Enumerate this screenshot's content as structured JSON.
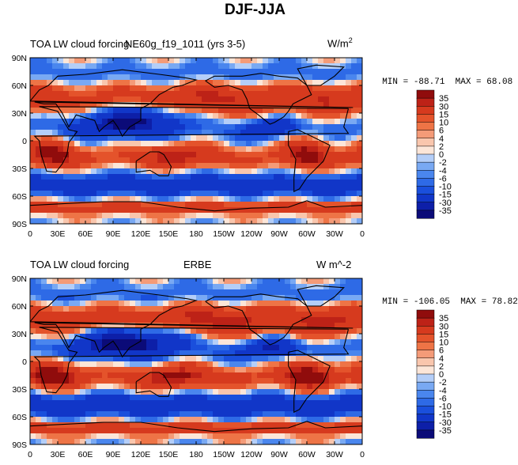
{
  "page": {
    "title": "DJF-JJA"
  },
  "colors": {
    "palette": [
      "#0b0b78",
      "#0d1fa8",
      "#1136c8",
      "#1a4fdc",
      "#2e6ae6",
      "#4a86ee",
      "#79a9f3",
      "#b4cef8",
      "#eef4fd",
      "#fce6d8",
      "#f9c6ad",
      "#f49b78",
      "#ee7446",
      "#e4532b",
      "#d63a1e",
      "#bd2217",
      "#900c0c"
    ],
    "land_outline": "#000000"
  },
  "chart_data": [
    {
      "type": "heatmap",
      "id": "model",
      "title_left": "TOA LW cloud forcing",
      "title_center": "NE60g_f19_1011 (yrs 3-5)",
      "title_right_base": "W/m",
      "title_right_sup": "2",
      "min_label": "MIN = ",
      "min": "-88.71",
      "max_label": "MAX = ",
      "max": "68.08",
      "xlim": [
        0,
        360
      ],
      "ylim": [
        -90,
        90
      ],
      "x_ticks": [
        "0",
        "30E",
        "60E",
        "90E",
        "120E",
        "150E",
        "180",
        "150W",
        "120W",
        "90W",
        "60W",
        "30W",
        "0"
      ],
      "y_ticks": [
        "90S",
        "60S",
        "30S",
        "0",
        "30N",
        "60N",
        "90N"
      ],
      "colorbar_levels": [
        "35",
        "30",
        "15",
        "10",
        "6",
        "4",
        "2",
        "0",
        "-2",
        "-4",
        "-6",
        "-10",
        "-15",
        "-30",
        "-35"
      ]
    },
    {
      "type": "heatmap",
      "id": "obs",
      "title_left": "TOA LW cloud forcing",
      "title_center": "ERBE",
      "title_right": "W m^-2",
      "min_label": "MIN = ",
      "min": "-106.05",
      "max_label": "MAX = ",
      "max": "78.82",
      "xlim": [
        0,
        360
      ],
      "ylim": [
        -90,
        90
      ],
      "x_ticks": [
        "0",
        "30E",
        "60E",
        "90E",
        "120E",
        "150E",
        "180",
        "150W",
        "120W",
        "90W",
        "60W",
        "30W",
        "0"
      ],
      "y_ticks": [
        "90S",
        "60S",
        "30S",
        "0",
        "30N",
        "60N",
        "90N"
      ],
      "colorbar_levels": [
        "35",
        "30",
        "15",
        "10",
        "6",
        "4",
        "2",
        "0",
        "-2",
        "-4",
        "-6",
        "-10",
        "-15",
        "-30",
        "-35"
      ]
    }
  ]
}
